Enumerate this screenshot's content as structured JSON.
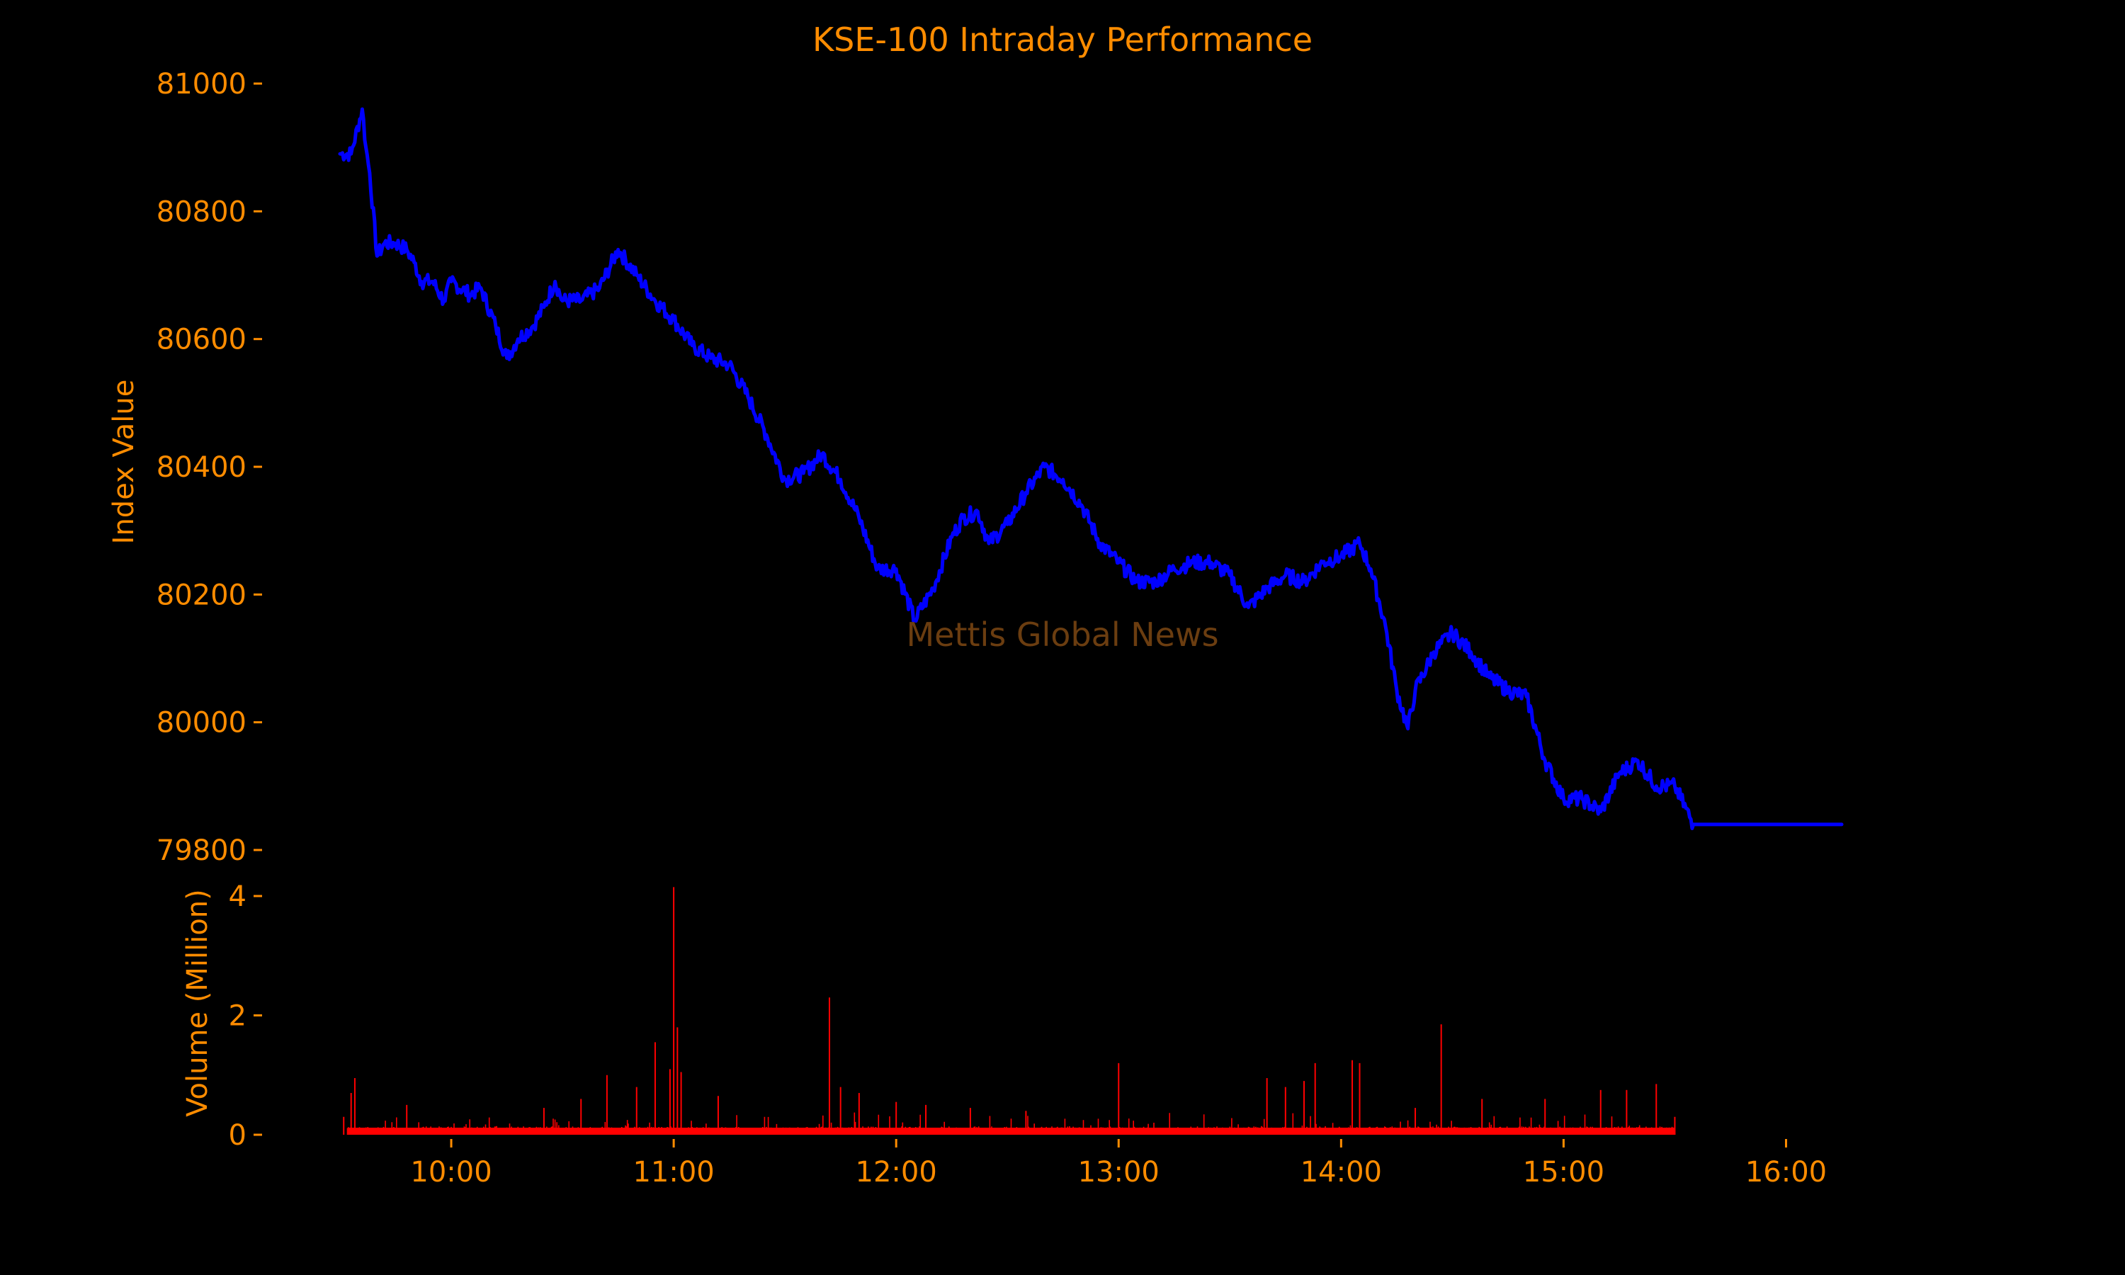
{
  "chart_data": [
    {
      "type": "line",
      "title": "KSE-100 Intraday Performance",
      "ylabel": "Index Value",
      "ylim": [
        79800,
        81000
      ],
      "yticks": [
        79800,
        80000,
        80200,
        80400,
        80600,
        80800,
        81000
      ],
      "xlim": [
        "09:30",
        "16:15"
      ],
      "grid": false,
      "line_color": "#0000ff",
      "watermark": "Mettis Global News",
      "series": [
        {
          "x": [
            "09:30",
            "09:33",
            "09:36",
            "09:37",
            "09:38",
            "09:40",
            "09:42",
            "09:45",
            "09:48",
            "09:50",
            "09:52",
            "09:55",
            "09:58",
            "10:00",
            "10:05",
            "10:08",
            "10:12",
            "10:15",
            "10:18",
            "10:22",
            "10:25",
            "10:28",
            "10:30",
            "10:35",
            "10:40",
            "10:45",
            "10:50",
            "10:55",
            "11:00",
            "11:05",
            "11:10",
            "11:15",
            "11:20",
            "11:25",
            "11:30",
            "11:35",
            "11:40",
            "11:45",
            "11:50",
            "11:55",
            "12:00",
            "12:05",
            "12:10",
            "12:15",
            "12:18",
            "12:22",
            "12:25",
            "12:30",
            "12:35",
            "12:40",
            "12:45",
            "12:50",
            "12:55",
            "13:00",
            "13:05",
            "13:10",
            "13:15",
            "13:20",
            "13:25",
            "13:30",
            "13:35",
            "13:40",
            "13:45",
            "13:50",
            "13:55",
            "14:00",
            "14:05",
            "14:08",
            "14:12",
            "14:15",
            "14:18",
            "14:20",
            "14:25",
            "14:30",
            "14:35",
            "14:40",
            "14:45",
            "14:50",
            "14:55",
            "15:00",
            "15:05",
            "15:10",
            "15:15",
            "15:20",
            "15:25",
            "15:30",
            "15:35",
            "16:15"
          ],
          "y": [
            80890,
            80890,
            80960,
            80900,
            80860,
            80730,
            80750,
            80750,
            80740,
            80720,
            80690,
            80690,
            80660,
            80690,
            80670,
            80680,
            80620,
            80570,
            80600,
            80620,
            80650,
            80690,
            80660,
            80660,
            80680,
            80740,
            80700,
            80660,
            80630,
            80590,
            80570,
            80560,
            80510,
            80450,
            80380,
            80390,
            80420,
            80380,
            80320,
            80240,
            80240,
            80160,
            80210,
            80290,
            80320,
            80330,
            80280,
            80310,
            80360,
            80400,
            80380,
            80340,
            80280,
            80250,
            80220,
            80220,
            80240,
            80250,
            80250,
            80230,
            80180,
            80210,
            80230,
            80220,
            80250,
            80260,
            80280,
            80240,
            80150,
            80050,
            79990,
            80050,
            80110,
            80140,
            80110,
            80070,
            80050,
            80040,
            79940,
            79880,
            79880,
            79860,
            79920,
            79940,
            79900,
            79900,
            79840,
            79840
          ]
        }
      ]
    },
    {
      "type": "bar",
      "ylabel": "Volume (Million)",
      "ylim": [
        0,
        4.2
      ],
      "yticks": [
        0,
        2,
        4
      ],
      "xticks": [
        "10:00",
        "11:00",
        "12:00",
        "13:00",
        "14:00",
        "15:00",
        "16:00"
      ],
      "bar_color": "#ff0000",
      "spikes": [
        {
          "x": "09:31",
          "v": 0.3
        },
        {
          "x": "09:33",
          "v": 0.7
        },
        {
          "x": "09:34",
          "v": 0.95
        },
        {
          "x": "09:48",
          "v": 0.5
        },
        {
          "x": "10:25",
          "v": 0.45
        },
        {
          "x": "10:35",
          "v": 0.6
        },
        {
          "x": "10:42",
          "v": 1.0
        },
        {
          "x": "10:50",
          "v": 0.8
        },
        {
          "x": "10:55",
          "v": 1.55
        },
        {
          "x": "10:59",
          "v": 1.1
        },
        {
          "x": "11:00",
          "v": 4.15
        },
        {
          "x": "11:01",
          "v": 1.8
        },
        {
          "x": "11:02",
          "v": 1.05
        },
        {
          "x": "11:12",
          "v": 0.65
        },
        {
          "x": "11:42",
          "v": 2.3
        },
        {
          "x": "11:45",
          "v": 0.8
        },
        {
          "x": "11:50",
          "v": 0.7
        },
        {
          "x": "12:00",
          "v": 0.55
        },
        {
          "x": "12:08",
          "v": 0.5
        },
        {
          "x": "12:20",
          "v": 0.45
        },
        {
          "x": "12:35",
          "v": 0.4
        },
        {
          "x": "13:00",
          "v": 1.2
        },
        {
          "x": "13:40",
          "v": 0.95
        },
        {
          "x": "13:45",
          "v": 0.8
        },
        {
          "x": "13:50",
          "v": 0.9
        },
        {
          "x": "13:53",
          "v": 1.2
        },
        {
          "x": "14:03",
          "v": 1.25
        },
        {
          "x": "14:05",
          "v": 1.2
        },
        {
          "x": "14:20",
          "v": 0.45
        },
        {
          "x": "14:27",
          "v": 1.85
        },
        {
          "x": "14:38",
          "v": 0.6
        },
        {
          "x": "14:55",
          "v": 0.6
        },
        {
          "x": "15:10",
          "v": 0.75
        },
        {
          "x": "15:17",
          "v": 0.75
        },
        {
          "x": "15:25",
          "v": 0.85
        },
        {
          "x": "15:30",
          "v": 0.3
        }
      ]
    }
  ]
}
